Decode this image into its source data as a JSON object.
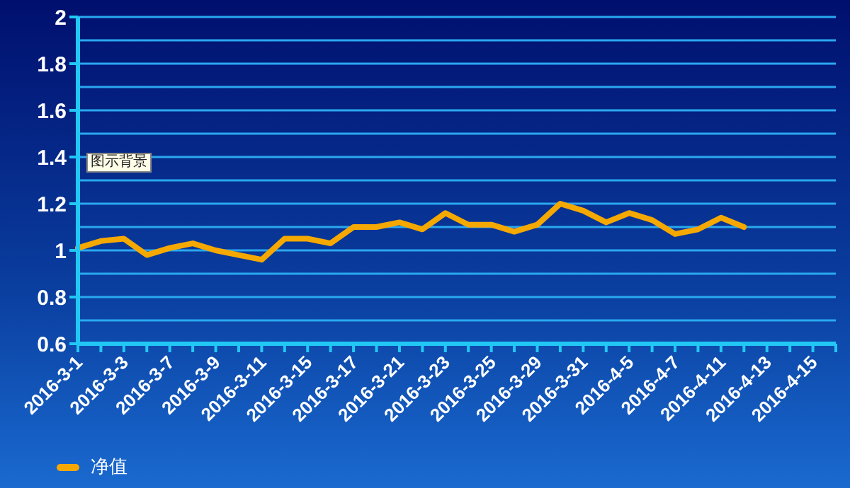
{
  "chart_data": {
    "type": "line",
    "categories": [
      "2016-3-1",
      null,
      "2016-3-3",
      null,
      "2016-3-7",
      null,
      "2016-3-9",
      null,
      "2016-3-11",
      null,
      "2016-3-15",
      null,
      "2016-3-17",
      null,
      "2016-3-21",
      null,
      "2016-3-23",
      null,
      "2016-3-25",
      null,
      "2016-3-29",
      null,
      "2016-3-31",
      null,
      "2016-4-5",
      null,
      "2016-4-7",
      null,
      "2016-4-11",
      null,
      "2016-4-13",
      null,
      "2016-4-15",
      null
    ],
    "series": [
      {
        "name": "净值",
        "color": "#f5a800",
        "values": [
          1.01,
          1.04,
          1.05,
          0.98,
          1.01,
          1.03,
          1.0,
          0.98,
          0.96,
          1.05,
          1.05,
          1.03,
          1.1,
          1.1,
          1.12,
          1.09,
          1.16,
          1.11,
          1.11,
          1.08,
          1.11,
          1.2,
          1.17,
          1.12,
          1.16,
          1.13,
          1.07,
          1.09,
          1.14,
          1.1,
          null,
          null,
          null,
          null
        ]
      }
    ],
    "ylim": [
      0.6,
      2
    ],
    "yticks": [
      0.6,
      0.8,
      1,
      1.2,
      1.4,
      1.6,
      1.8,
      2
    ],
    "grid": "y",
    "legend": "bottom left",
    "marker": "none",
    "line_style": "solid",
    "annotations": [
      "图示背景"
    ]
  }
}
